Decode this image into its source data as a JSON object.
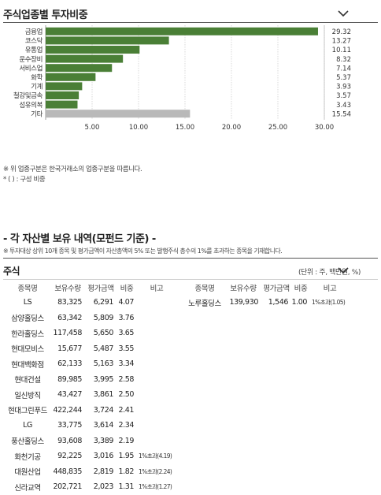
{
  "section1": {
    "title": "주식업종별 투자비중",
    "footnotes": [
      "※ 위 업종구분은 한국거래소의 업종구분을 따릅니다.",
      "* ( ) : 구성 비중"
    ]
  },
  "chart_data": {
    "type": "bar",
    "orientation": "horizontal",
    "title": "주식업종별 투자비중",
    "categories": [
      "금융업",
      "코스닥",
      "유통업",
      "운수장비",
      "서비스업",
      "화학",
      "기계",
      "철강및금속",
      "섬유의복",
      "기타"
    ],
    "values": [
      29.32,
      13.27,
      10.11,
      8.32,
      7.14,
      5.37,
      3.93,
      3.57,
      3.43,
      15.54
    ],
    "value_labels": [
      "29.32",
      "13.27",
      "10.11",
      "8.32",
      "7.14",
      "5.37",
      "3.93",
      "3.57",
      "3.43",
      "15.54"
    ],
    "xlim": [
      0,
      30
    ],
    "xticks": [
      "5.00",
      "10.00",
      "15.00",
      "20.00",
      "25.00",
      "30.00"
    ],
    "colors": {
      "main": "#4a7f36",
      "other": "#b9b9b9"
    },
    "grid": true
  },
  "section2": {
    "title": "- 각 자산별 보유 내역(모펀드 기준) -",
    "subnote": "※ 투자대상 상위 10개 종목 및 평가금액이 자산총액의 5% 또는 발행주식 총수의 1%를 초과하는 종목을 기재합니다.",
    "table_title": "주식",
    "unit": "(단위 : 주, 백만원, %)",
    "headers": [
      "종목명",
      "보유수량",
      "평가금액",
      "비중",
      "비고"
    ],
    "left_rows": [
      [
        "LS",
        "83,325",
        "6,291",
        "4.07",
        ""
      ],
      [
        "삼양홀딩스",
        "63,342",
        "5,809",
        "3.76",
        ""
      ],
      [
        "한라홀딩스",
        "117,458",
        "5,650",
        "3.65",
        ""
      ],
      [
        "현대모비스",
        "15,677",
        "5,487",
        "3.55",
        ""
      ],
      [
        "현대백화점",
        "62,133",
        "5,163",
        "3.34",
        ""
      ],
      [
        "현대건설",
        "89,985",
        "3,995",
        "2.58",
        ""
      ],
      [
        "일신방직",
        "43,427",
        "3,861",
        "2.50",
        ""
      ],
      [
        "현대그린푸드",
        "422,244",
        "3,724",
        "2.41",
        ""
      ],
      [
        "LG",
        "33,775",
        "3,614",
        "2.34",
        ""
      ],
      [
        "풍산홀딩스",
        "93,608",
        "3,389",
        "2.19",
        ""
      ],
      [
        "화천기공",
        "92,225",
        "3,016",
        "1.95",
        "1%초과(4.19)"
      ],
      [
        "대원산업",
        "448,835",
        "2,819",
        "1.82",
        "1%초과(2.24)"
      ],
      [
        "신라교역",
        "202,721",
        "2,023",
        "1.31",
        "1%초과(1.27)"
      ]
    ],
    "right_rows": [
      [
        "노루홀딩스",
        "139,930",
        "1,546",
        "1.00",
        "1%초과(1.05)"
      ]
    ]
  }
}
